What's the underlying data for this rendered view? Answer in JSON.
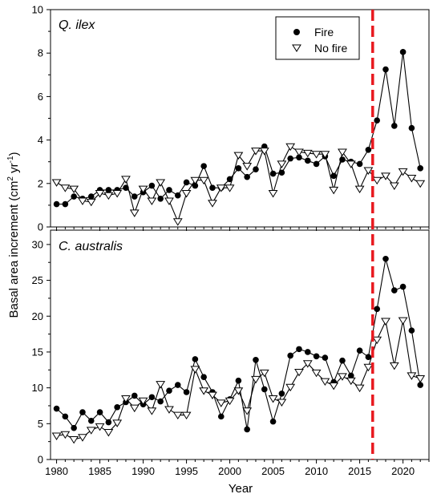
{
  "chart_data": {
    "type": "line",
    "xlabel": "Year",
    "ylabel_main": "Basal area increment (cm",
    "ylabel_sup1": "2",
    "ylabel_mid": " yr",
    "ylabel_sup2": "-1",
    "ylabel_end": ")",
    "x": [
      1980,
      1981,
      1982,
      1983,
      1984,
      1985,
      1986,
      1987,
      1988,
      1989,
      1990,
      1991,
      1992,
      1993,
      1994,
      1995,
      1996,
      1997,
      1998,
      1999,
      2000,
      2001,
      2002,
      2003,
      2004,
      2005,
      2006,
      2007,
      2008,
      2009,
      2010,
      2011,
      2012,
      2013,
      2014,
      2015,
      2016,
      2017,
      2018,
      2019,
      2020,
      2021,
      2022
    ],
    "xlim": [
      1979.3,
      2023
    ],
    "xticks": [
      1980,
      1985,
      1990,
      1995,
      2000,
      2005,
      2010,
      2015,
      2020
    ],
    "xtick_labels": [
      "1980",
      "1985",
      "1990",
      "1995",
      "2000",
      "2005",
      "2010",
      "2015",
      "2020"
    ],
    "fire_line_year": 2016.5,
    "legend": {
      "fire": "Fire",
      "nofire": "No fire",
      "position": "top-right"
    },
    "panels": [
      {
        "label": "Q. ilex",
        "ylim": [
          0,
          10
        ],
        "yticks": [
          0,
          2,
          4,
          6,
          8,
          10
        ],
        "ytick_labels": [
          "0",
          "2",
          "4",
          "6",
          "8",
          "10"
        ],
        "series": [
          {
            "name": "Fire",
            "marker": "circle",
            "values": [
              1.05,
              1.05,
              1.4,
              1.3,
              1.4,
              1.7,
              1.7,
              1.7,
              1.8,
              1.4,
              1.6,
              1.9,
              1.3,
              1.7,
              1.45,
              2.05,
              1.9,
              2.8,
              1.8,
              1.8,
              2.2,
              2.7,
              2.3,
              2.65,
              3.7,
              2.45,
              2.5,
              3.15,
              3.2,
              3.05,
              2.9,
              3.25,
              2.35,
              3.1,
              3.0,
              2.9,
              3.55,
              4.9,
              7.25,
              4.65,
              8.05,
              4.55,
              2.7
            ]
          },
          {
            "name": "No fire",
            "marker": "triangle-down",
            "values": [
              2.05,
              1.8,
              1.75,
              1.2,
              1.15,
              1.55,
              1.45,
              1.55,
              2.2,
              0.65,
              1.75,
              1.2,
              2.05,
              1.2,
              0.25,
              1.55,
              2.15,
              2.15,
              1.1,
              1.8,
              1.8,
              3.3,
              2.8,
              3.5,
              3.5,
              1.55,
              2.9,
              3.7,
              3.45,
              3.4,
              3.35,
              3.35,
              1.7,
              3.45,
              2.9,
              1.75,
              2.6,
              2.15,
              2.35,
              1.9,
              2.55,
              2.25,
              2.0
            ]
          }
        ]
      },
      {
        "label": "C. australis",
        "ylim": [
          0,
          32
        ],
        "yticks": [
          0,
          5,
          10,
          15,
          20,
          25,
          30
        ],
        "ytick_labels": [
          "0",
          "5",
          "10",
          "15",
          "20",
          "25",
          "30"
        ],
        "series": [
          {
            "name": "Fire",
            "marker": "circle",
            "values": [
              7.1,
              6.0,
              4.4,
              6.6,
              5.4,
              6.6,
              5.2,
              7.3,
              8.0,
              8.9,
              7.7,
              8.7,
              8.1,
              9.6,
              10.4,
              9.4,
              14.0,
              11.5,
              9.4,
              6.0,
              8.4,
              11.0,
              4.2,
              13.9,
              9.8,
              5.3,
              9.2,
              14.5,
              15.4,
              15.0,
              14.4,
              14.2,
              10.8,
              13.8,
              11.7,
              15.2,
              14.3,
              21.0,
              28.0,
              23.6,
              24.1,
              18.0,
              10.4
            ]
          },
          {
            "name": "No fire",
            "marker": "triangle-down",
            "values": [
              3.3,
              3.5,
              2.8,
              3.1,
              4.1,
              4.6,
              3.8,
              5.1,
              8.5,
              7.2,
              8.2,
              6.8,
              10.5,
              7.0,
              6.2,
              6.2,
              12.6,
              9.6,
              9.0,
              7.9,
              8.2,
              9.6,
              6.8,
              11.2,
              12.1,
              8.5,
              8.0,
              10.1,
              12.2,
              13.4,
              12.1,
              10.9,
              10.3,
              11.6,
              11.0,
              10.0,
              12.9,
              16.7,
              19.3,
              13.1,
              19.4,
              11.7,
              11.3
            ]
          }
        ]
      }
    ]
  }
}
